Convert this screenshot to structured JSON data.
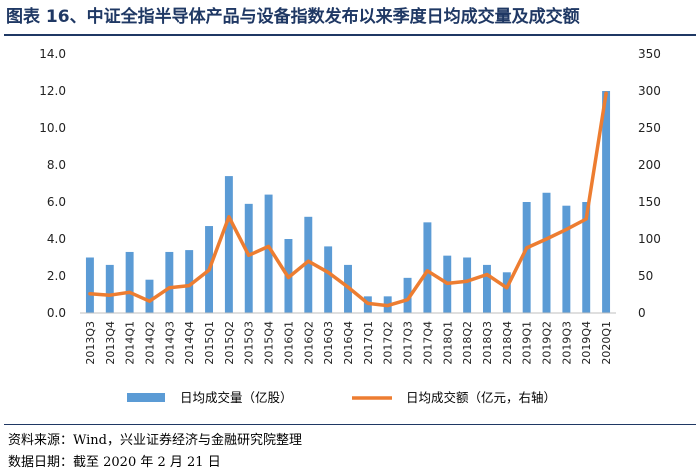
{
  "header": {
    "title": "图表 16、中证全指半导体产品与设备指数发布以来季度日均成交量及成交额"
  },
  "footer": {
    "source": "资料来源：Wind，兴业证券经济与金融研究院整理",
    "date": "数据日期：截至 2020 年 2 月 21 日"
  },
  "colors": {
    "bar": "#5b9bd5",
    "line": "#ed7d31",
    "rule": "#1f3864"
  },
  "chart_data": {
    "type": "bar",
    "categories": [
      "2013Q3",
      "2013Q4",
      "2014Q1",
      "2014Q2",
      "2014Q3",
      "2014Q4",
      "2015Q1",
      "2015Q2",
      "2015Q3",
      "2015Q4",
      "2016Q1",
      "2016Q2",
      "2016Q3",
      "2016Q4",
      "2017Q1",
      "2017Q2",
      "2017Q3",
      "2017Q4",
      "2018Q1",
      "2018Q2",
      "2018Q3",
      "2018Q4",
      "2019Q1",
      "2019Q2",
      "2019Q3",
      "2019Q4",
      "2020Q1"
    ],
    "series": [
      {
        "name": "日均成交量（亿股）",
        "type": "bar",
        "axis": "left",
        "values": [
          3.0,
          2.6,
          3.3,
          1.8,
          3.3,
          3.4,
          4.7,
          7.4,
          5.9,
          6.4,
          4.0,
          5.2,
          3.6,
          2.6,
          0.9,
          0.9,
          1.9,
          4.9,
          3.1,
          3.0,
          2.6,
          2.2,
          6.0,
          6.5,
          5.8,
          6.0,
          12.0
        ]
      },
      {
        "name": "日均成交额（亿元，右轴）",
        "type": "line",
        "axis": "right",
        "values": [
          26,
          24,
          28,
          16,
          34,
          37,
          58,
          130,
          78,
          90,
          48,
          70,
          55,
          35,
          13,
          10,
          18,
          57,
          40,
          43,
          52,
          34,
          88,
          100,
          113,
          127,
          297
        ]
      }
    ],
    "yaxis_left": {
      "min": 0,
      "max": 14,
      "ticks": [
        "0.0",
        "2.0",
        "4.0",
        "6.0",
        "8.0",
        "10.0",
        "12.0",
        "14.0"
      ]
    },
    "yaxis_right": {
      "min": 0,
      "max": 350,
      "ticks": [
        "0",
        "50",
        "100",
        "150",
        "200",
        "250",
        "300",
        "350"
      ]
    },
    "grid": false,
    "legend_position": "bottom"
  }
}
